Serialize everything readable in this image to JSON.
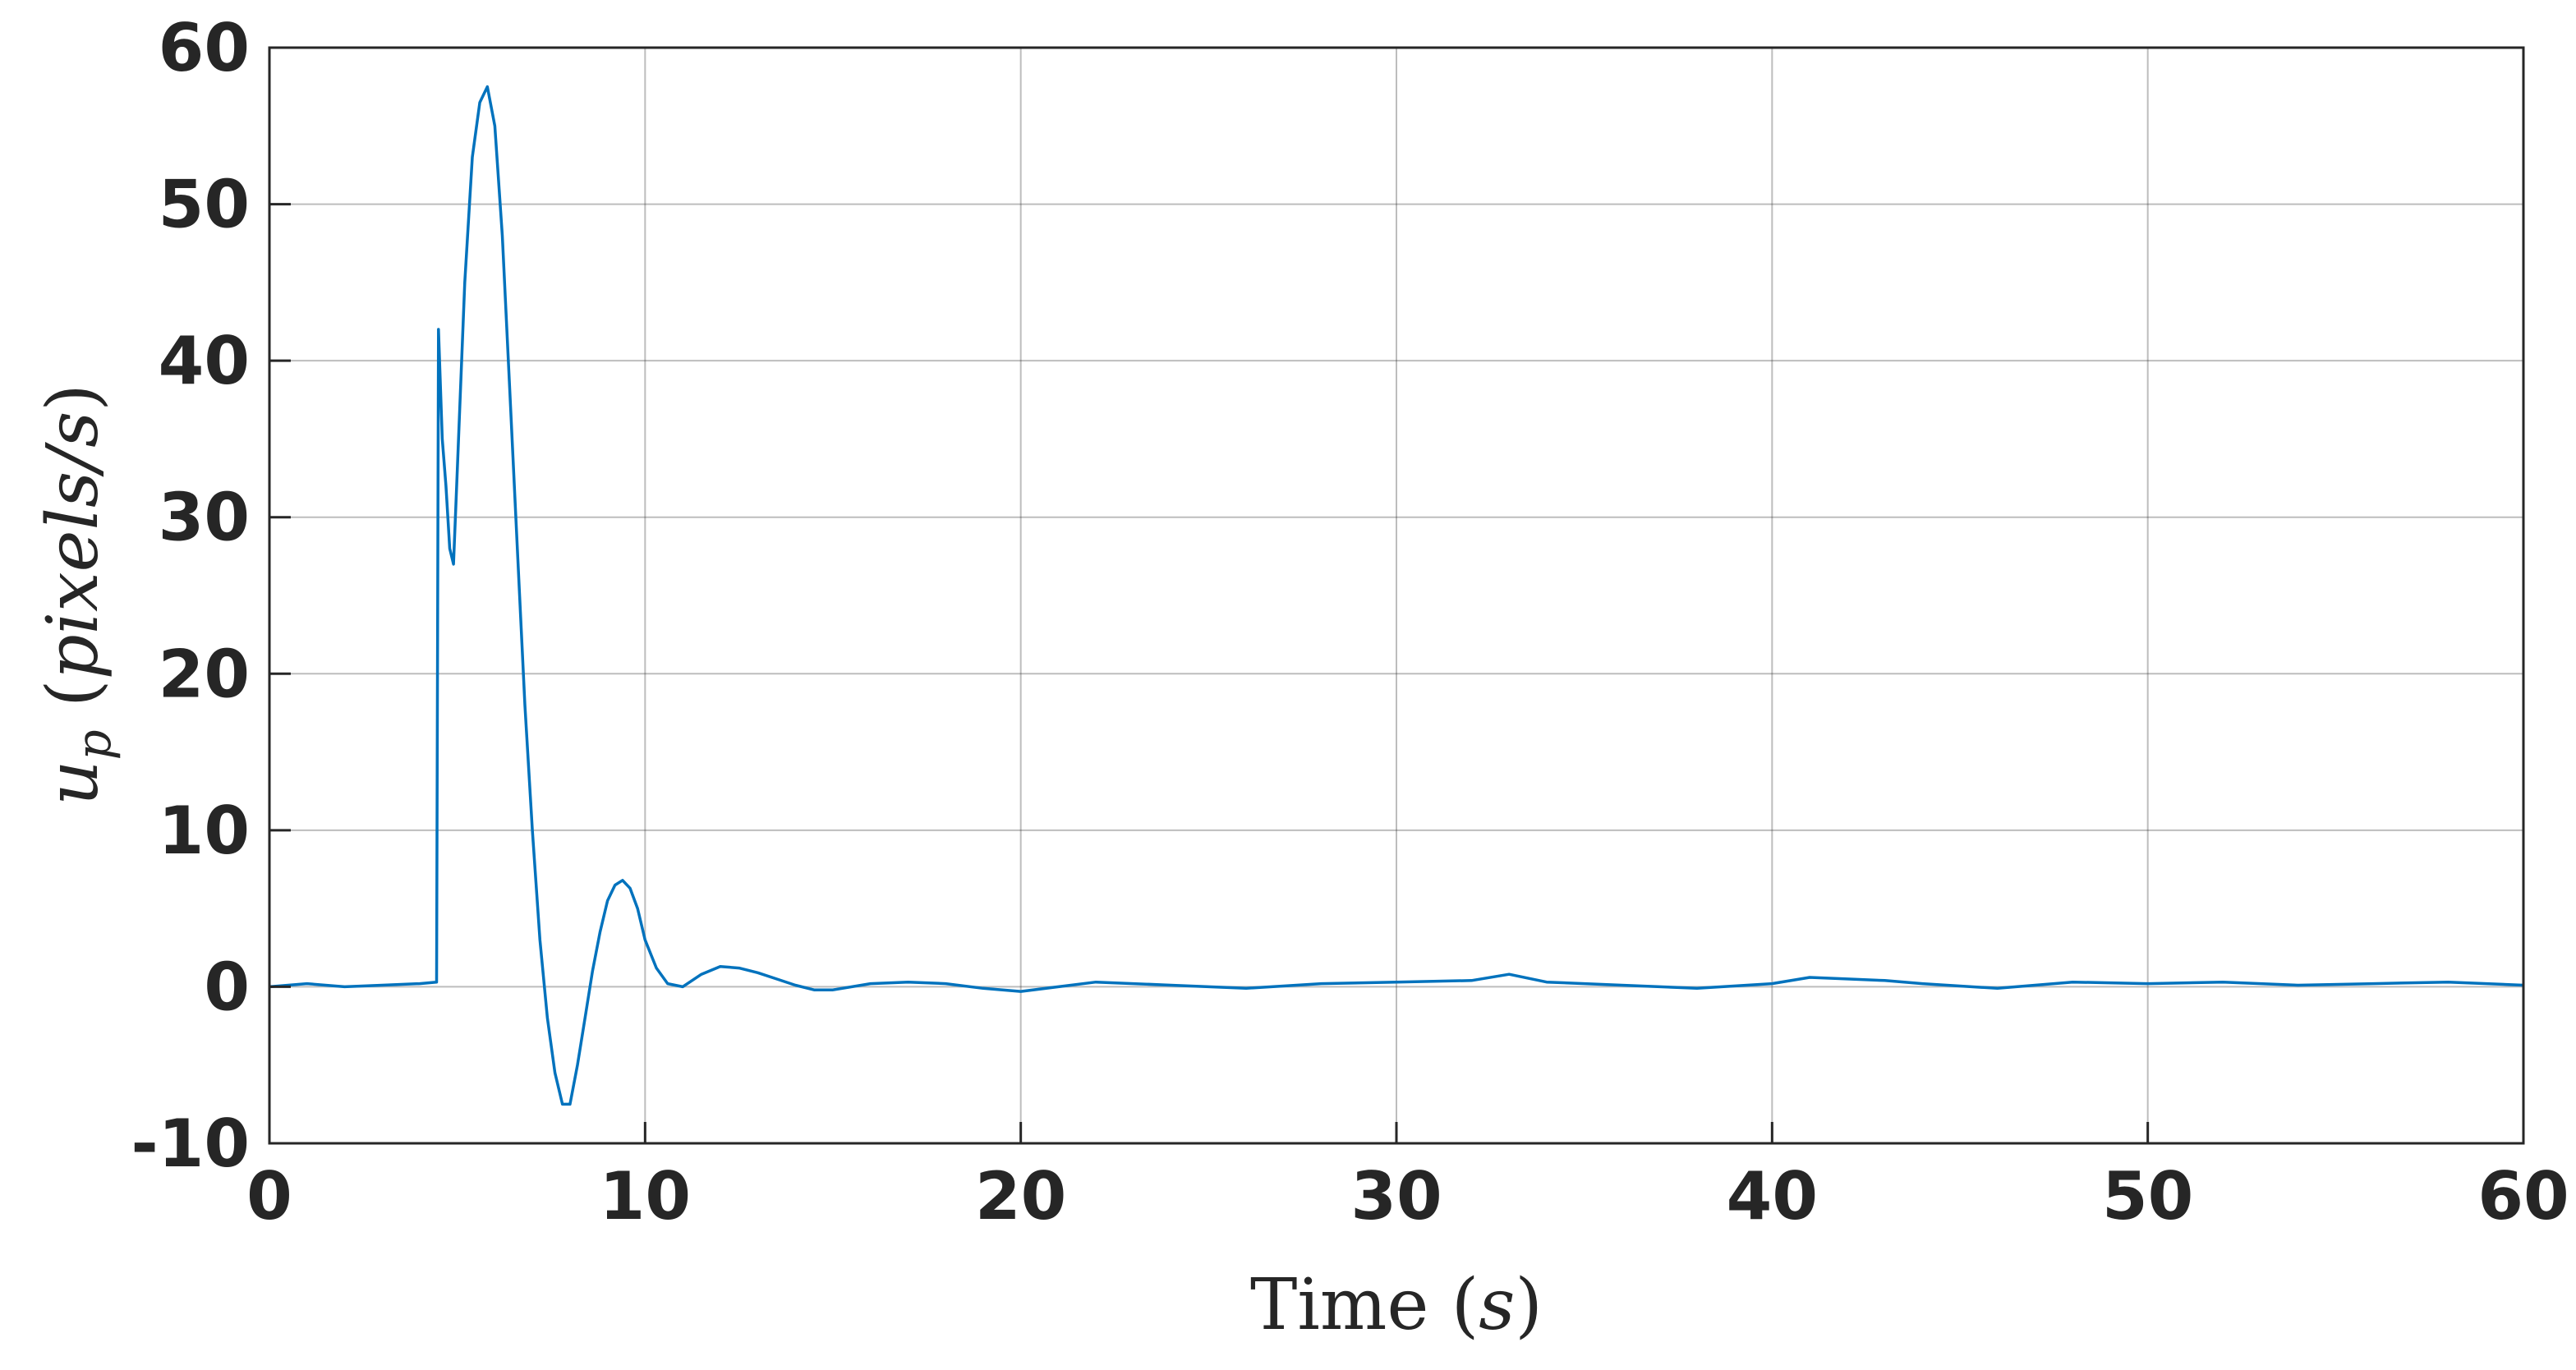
{
  "chart_data": {
    "type": "line",
    "xlabel": {
      "text": "Time ",
      "unit_open": "(",
      "unit": "s",
      "unit_close": ")"
    },
    "ylabel": {
      "symbol": "u",
      "subscript": "p",
      "unit_open": " (",
      "unit": "pixels/s",
      "unit_close": ")"
    },
    "xlim": [
      0,
      60
    ],
    "ylim": [
      -10,
      60
    ],
    "xticks": [
      0,
      10,
      20,
      30,
      40,
      50,
      60
    ],
    "yticks": [
      -10,
      0,
      10,
      20,
      30,
      40,
      50,
      60
    ],
    "xtick_labels": [
      "0",
      "10",
      "20",
      "30",
      "40",
      "50",
      "60"
    ],
    "ytick_labels": [
      "-10",
      "0",
      "10",
      "20",
      "30",
      "40",
      "50",
      "60"
    ],
    "grid": true,
    "colors": {
      "line": "#0072BD",
      "grid": "#262626",
      "axis": "#262626"
    },
    "series": [
      {
        "x": [
          0,
          1,
          2,
          3,
          4,
          4.45,
          4.5,
          4.6,
          4.7,
          4.8,
          4.9,
          5.0,
          5.2,
          5.4,
          5.6,
          5.8,
          6.0,
          6.2,
          6.4,
          6.6,
          6.8,
          7.0,
          7.2,
          7.4,
          7.6,
          7.8,
          8.0,
          8.2,
          8.4,
          8.6,
          8.8,
          9.0,
          9.2,
          9.4,
          9.6,
          9.8,
          10.0,
          10.3,
          10.6,
          11.0,
          11.5,
          12.0,
          12.5,
          13.0,
          13.5,
          14.0,
          14.5,
          15.0,
          16,
          17,
          18,
          19,
          20,
          22,
          24,
          26,
          28,
          30,
          32,
          33,
          34,
          36,
          38,
          40,
          41,
          42,
          43,
          44,
          46,
          48,
          50,
          52,
          54,
          56,
          58,
          60
        ],
        "y": [
          0,
          0.2,
          0,
          0.1,
          0.2,
          0.3,
          42,
          35,
          32,
          28,
          27,
          33,
          45,
          53,
          56.5,
          57.5,
          55,
          48,
          38,
          28,
          18,
          10,
          3,
          -2,
          -5.5,
          -7.5,
          -7.5,
          -5,
          -2,
          1,
          3.5,
          5.5,
          6.5,
          6.8,
          6.3,
          5,
          3,
          1.2,
          0.2,
          0,
          0.8,
          1.3,
          1.2,
          0.9,
          0.5,
          0.1,
          -0.2,
          -0.2,
          0.2,
          0.3,
          0.2,
          -0.1,
          -0.3,
          0.3,
          0.1,
          -0.1,
          0.2,
          0.3,
          0.4,
          0.8,
          0.3,
          0.1,
          -0.1,
          0.2,
          0.6,
          0.5,
          0.4,
          0.2,
          -0.1,
          0.3,
          0.2,
          0.3,
          0.1,
          0.2,
          0.3,
          0.1
        ]
      }
    ]
  }
}
